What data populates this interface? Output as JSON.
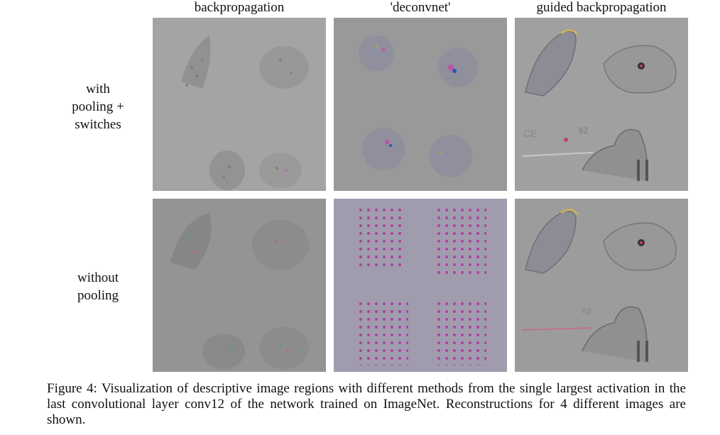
{
  "figure": {
    "columns": [
      "backpropagation",
      "'deconvnet'",
      "guided backpropagation"
    ],
    "rows": [
      {
        "label_lines": [
          "with",
          "pooling +",
          "switches"
        ]
      },
      {
        "label_lines": [
          "without",
          "pooling"
        ]
      }
    ],
    "panel_text": {
      "number_62": "62",
      "letters_ce": "CE"
    },
    "caption": "Figure 4: Visualization of descriptive image regions with different methods from the single largest activation in the last convolutional layer conv12 of the network trained on ImageNet. Reconstructions for 4 different images are shown."
  }
}
